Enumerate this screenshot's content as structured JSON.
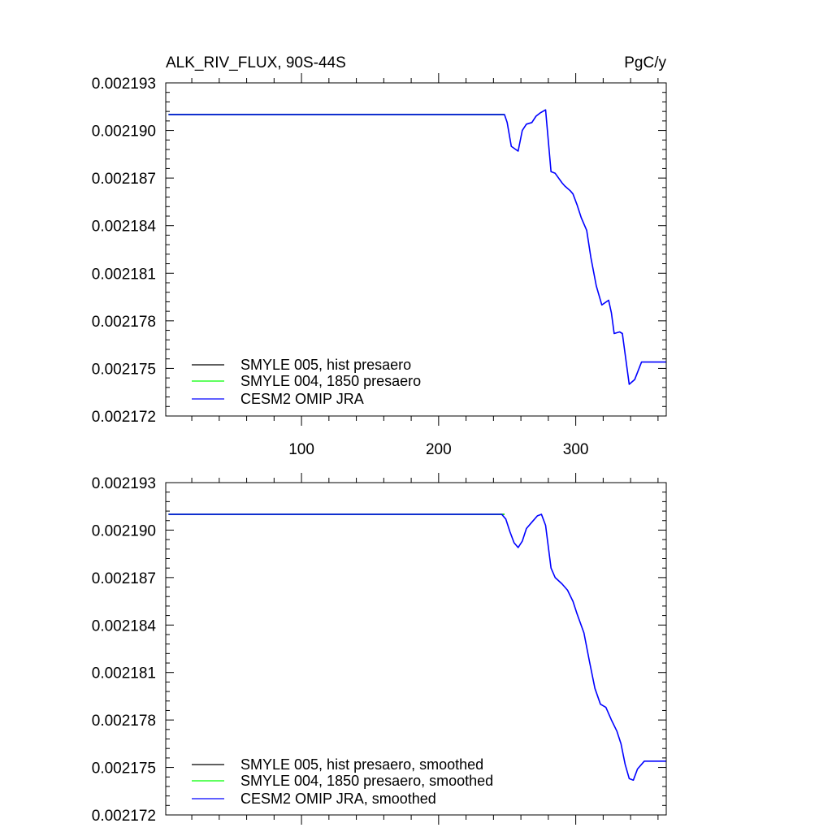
{
  "chart_data": [
    {
      "type": "line",
      "title": "ALK_RIV_FLUX, 90S-44S",
      "units": "PgC/y",
      "xlim": [
        1,
        366
      ],
      "ylim": [
        0.002172,
        0.002193
      ],
      "x_ticks": [
        100,
        200,
        300
      ],
      "x_tick_labels": [
        "100",
        "200",
        "300"
      ],
      "y_ticks": [
        0.002172,
        0.002175,
        0.002178,
        0.002181,
        0.002184,
        0.002187,
        0.00219,
        0.002193
      ],
      "y_tick_labels": [
        "0.002172",
        "0.002175",
        "0.002178",
        "0.002181",
        "0.002184",
        "0.002187",
        "0.002190",
        "0.002193"
      ],
      "legend_position": "bottom-left",
      "series": [
        {
          "name": "SMYLE 005, hist presaero",
          "color": "#000000",
          "x": [
            3,
            248
          ],
          "y": [
            0.002191,
            0.002191
          ]
        },
        {
          "name": "SMYLE 004, 1850 presaero",
          "color": "#00ff00",
          "x": [
            3,
            248
          ],
          "y": [
            0.002191,
            0.002191
          ]
        },
        {
          "name": "CESM2 OMIP JRA",
          "color": "#0000ff",
          "x": [
            3,
            248,
            250,
            253,
            258,
            261,
            264,
            268,
            271,
            274,
            278,
            282,
            285,
            290,
            292,
            296,
            298,
            301,
            304,
            308,
            311,
            315,
            319,
            324,
            326,
            328,
            332,
            334,
            336,
            339,
            343,
            348,
            366
          ],
          "y": [
            0.002191,
            0.002191,
            0.0021905,
            0.002189,
            0.0021887,
            0.00219,
            0.0021904,
            0.0021905,
            0.0021909,
            0.0021911,
            0.0021913,
            0.0021874,
            0.0021873,
            0.0021867,
            0.0021865,
            0.0021862,
            0.002186,
            0.0021853,
            0.0021845,
            0.0021837,
            0.002182,
            0.0021802,
            0.002179,
            0.0021793,
            0.0021785,
            0.0021772,
            0.0021773,
            0.0021772,
            0.0021759,
            0.002174,
            0.0021743,
            0.0021754,
            0.0021754
          ]
        }
      ]
    },
    {
      "type": "line",
      "xlim": [
        1,
        366
      ],
      "ylim": [
        0.002172,
        0.002193
      ],
      "x_ticks": [
        100,
        200,
        300
      ],
      "y_ticks": [
        0.002172,
        0.002175,
        0.002178,
        0.002181,
        0.002184,
        0.002187,
        0.00219,
        0.002193
      ],
      "y_tick_labels": [
        "0.002172",
        "0.002175",
        "0.002178",
        "0.002181",
        "0.002184",
        "0.002187",
        "0.002190",
        "0.002193"
      ],
      "legend_position": "bottom-left",
      "series": [
        {
          "name": "SMYLE 005, hist presaero, smoothed",
          "color": "#000000",
          "x": [
            3,
            248
          ],
          "y": [
            0.002191,
            0.002191
          ]
        },
        {
          "name": "SMYLE 004, 1850 presaero, smoothed",
          "color": "#00ff00",
          "x": [
            3,
            248
          ],
          "y": [
            0.002191,
            0.002191
          ]
        },
        {
          "name": "CESM2 OMIP JRA, smoothed",
          "color": "#0000ff",
          "x": [
            3,
            246,
            249,
            252,
            255,
            258,
            261,
            264,
            268,
            272,
            275,
            278,
            282,
            285,
            290,
            294,
            298,
            301,
            306,
            310,
            314,
            318,
            322,
            326,
            330,
            333,
            336,
            339,
            342,
            345,
            350,
            355,
            366
          ],
          "y": [
            0.002191,
            0.002191,
            0.0021907,
            0.0021899,
            0.0021892,
            0.0021889,
            0.0021893,
            0.0021901,
            0.0021905,
            0.0021909,
            0.002191,
            0.0021903,
            0.0021876,
            0.002187,
            0.0021866,
            0.0021862,
            0.0021855,
            0.0021847,
            0.0021835,
            0.0021817,
            0.00218,
            0.002179,
            0.0021788,
            0.002178,
            0.0021773,
            0.0021765,
            0.0021752,
            0.0021743,
            0.0021742,
            0.0021749,
            0.0021754,
            0.0021754,
            0.0021754
          ]
        }
      ]
    }
  ]
}
